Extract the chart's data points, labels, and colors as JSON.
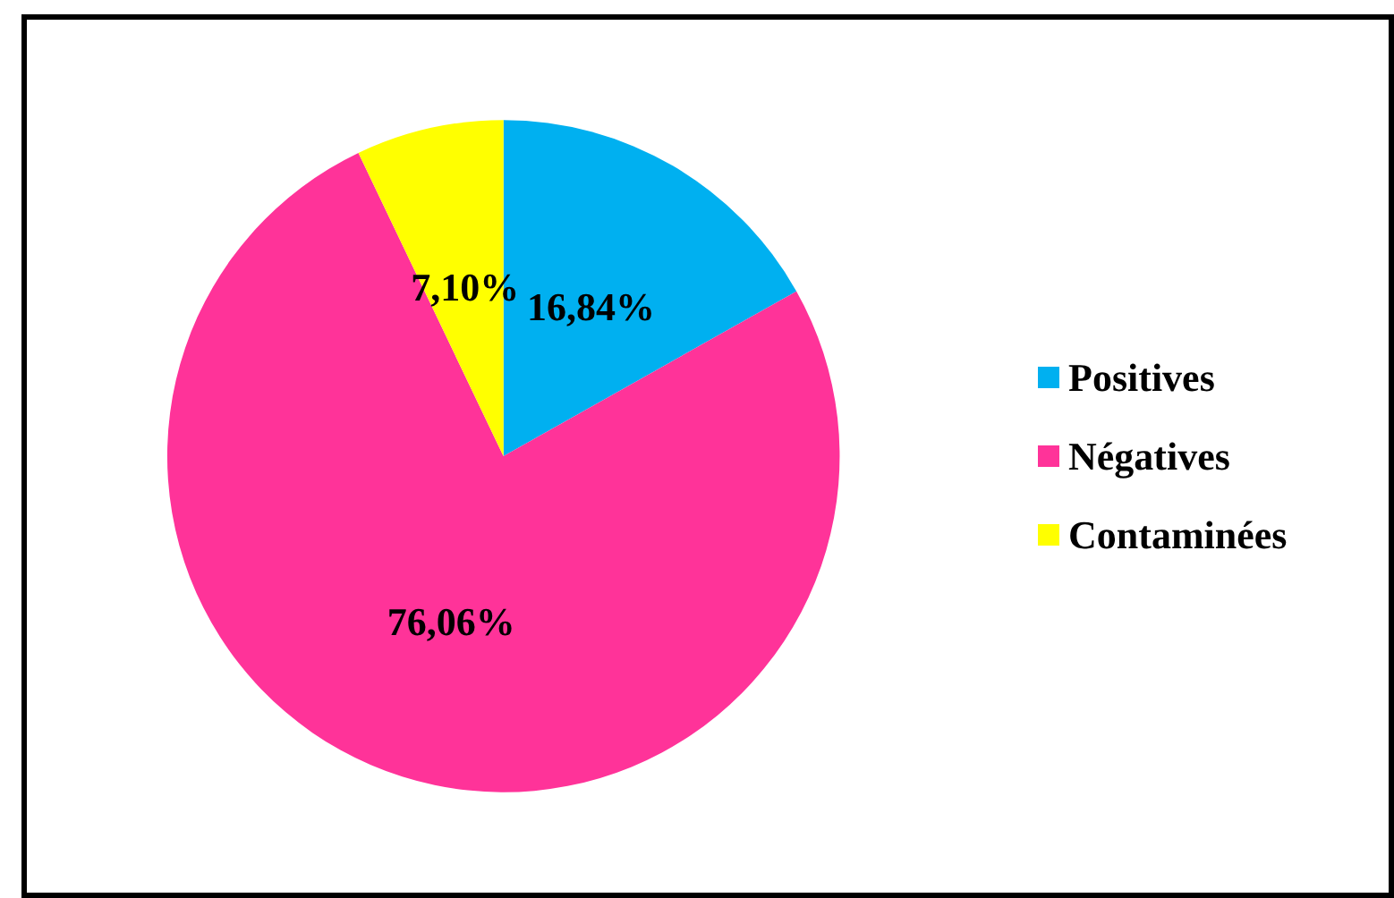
{
  "chart_data": {
    "type": "pie",
    "categories": [
      "Positives",
      "Négatives",
      "Contaminées"
    ],
    "values": [
      16.84,
      76.06,
      7.1
    ],
    "colors": [
      "#00b0f0",
      "#ff3399",
      "#ffff00"
    ],
    "value_labels": [
      "16,84%",
      "76,06%",
      "7,10%"
    ],
    "legend": "right"
  }
}
